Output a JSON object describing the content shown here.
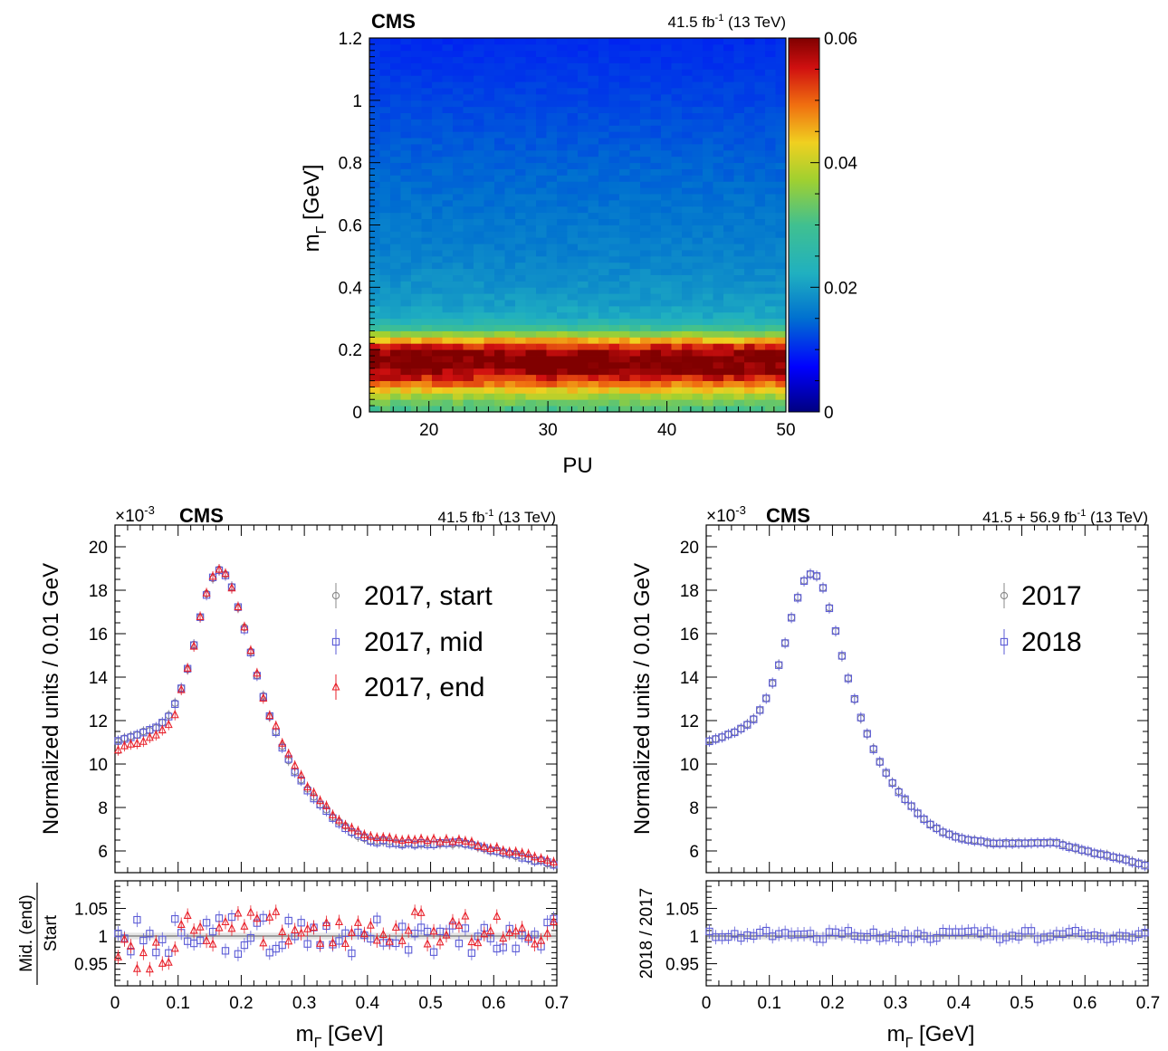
{
  "top_panel": {
    "experiment": "CMS",
    "lumi": "41.5 fb",
    "lumi_exp": "-1",
    "energy": "(13 TeV)",
    "xlabel": "PU",
    "ylabel_main": "m",
    "ylabel_sub": "Γ",
    "ylabel_unit": " [GeV]",
    "colorbar_ticks": [
      "0",
      "0.02",
      "0.04",
      "0.06"
    ]
  },
  "bottom_left": {
    "experiment": "CMS",
    "exponent_label": "×10",
    "exponent_power": "-3",
    "lumi": "41.5 fb",
    "lumi_exp": "-1",
    "energy": "(13 TeV)",
    "ylabel": "Normalized units / 0.01 GeV",
    "ratio_label_num": "Mid. (end)",
    "ratio_label_den": "Start",
    "xlabel_main": "m",
    "xlabel_sub": "Γ",
    "xlabel_unit": " [GeV]",
    "legend": [
      "2017, start",
      "2017, mid",
      "2017, end"
    ]
  },
  "bottom_right": {
    "experiment": "CMS",
    "exponent_label": "×10",
    "exponent_power": "-3",
    "lumi": "41.5 + 56.9 fb",
    "lumi_exp": "-1",
    "energy": "(13 TeV)",
    "ylabel": "Normalized units / 0.01 GeV",
    "ratio_label": "2018 / 2017",
    "xlabel_main": "m",
    "xlabel_sub": "Γ",
    "xlabel_unit": " [GeV]",
    "legend": [
      "2017",
      "2018"
    ]
  },
  "colors": {
    "start": "#888888",
    "mid": "#5b5bd6",
    "end": "#e8202a",
    "y2017": "#888888",
    "y2018": "#5b5bd6"
  },
  "chart_data": [
    {
      "type": "heatmap",
      "x_range": [
        15,
        50
      ],
      "y_range": [
        0,
        1.2
      ],
      "x_bins": 40,
      "y_bins": 60,
      "z_range": [
        0,
        0.06
      ],
      "x_ticks": [
        20,
        30,
        40,
        50
      ],
      "y_ticks": [
        0,
        0.2,
        0.4,
        0.6,
        0.8,
        1,
        1.2
      ],
      "y_profile": {
        "y": [
          0.0,
          0.02,
          0.04,
          0.06,
          0.08,
          0.1,
          0.12,
          0.14,
          0.16,
          0.18,
          0.2,
          0.22,
          0.24,
          0.26,
          0.28,
          0.3,
          0.35,
          0.4,
          0.5,
          0.6,
          0.7,
          0.8,
          0.9,
          1.0,
          1.1,
          1.2
        ],
        "z": [
          0.03,
          0.032,
          0.035,
          0.04,
          0.046,
          0.052,
          0.057,
          0.06,
          0.062,
          0.061,
          0.058,
          0.05,
          0.04,
          0.032,
          0.026,
          0.022,
          0.02,
          0.019,
          0.017,
          0.016,
          0.015,
          0.014,
          0.013,
          0.012,
          0.011,
          0.01
        ]
      }
    },
    {
      "type": "scatter",
      "x_range": [
        0,
        0.7
      ],
      "y_range": [
        5,
        21
      ],
      "y_ticks": [
        6,
        8,
        10,
        12,
        14,
        16,
        18,
        20
      ],
      "x_ticks": [
        0,
        0.1,
        0.2,
        0.3,
        0.4,
        0.5,
        0.6,
        0.7
      ],
      "ratio_range": [
        0.91,
        1.1
      ],
      "ratio_ticks": [
        0.95,
        1,
        1.05
      ],
      "curve_x": [
        0,
        0.02,
        0.04,
        0.06,
        0.08,
        0.1,
        0.12,
        0.14,
        0.16,
        0.18,
        0.2,
        0.22,
        0.24,
        0.26,
        0.28,
        0.3,
        0.32,
        0.34,
        0.36,
        0.38,
        0.4,
        0.45,
        0.5,
        0.55,
        0.6,
        0.65,
        0.7
      ],
      "curve_y": [
        11.0,
        11.2,
        11.4,
        11.6,
        12.0,
        13.0,
        14.8,
        17.4,
        19.0,
        18.6,
        16.8,
        14.6,
        12.6,
        11.1,
        9.9,
        9.0,
        8.3,
        7.7,
        7.2,
        6.8,
        6.5,
        6.35,
        6.35,
        6.35,
        6.0,
        5.7,
        5.35
      ],
      "series": [
        {
          "name": "2017, start",
          "marker": "circle"
        },
        {
          "name": "2017, mid",
          "marker": "square"
        },
        {
          "name": "2017, end",
          "marker": "triangle"
        }
      ]
    },
    {
      "type": "scatter",
      "x_range": [
        0,
        0.7
      ],
      "y_range": [
        5,
        21
      ],
      "y_ticks": [
        6,
        8,
        10,
        12,
        14,
        16,
        18,
        20
      ],
      "x_ticks": [
        0,
        0.1,
        0.2,
        0.3,
        0.4,
        0.5,
        0.6,
        0.7
      ],
      "ratio_range": [
        0.91,
        1.1
      ],
      "ratio_ticks": [
        0.95,
        1,
        1.05
      ],
      "curve_x": [
        0,
        0.02,
        0.04,
        0.06,
        0.08,
        0.1,
        0.12,
        0.14,
        0.16,
        0.18,
        0.2,
        0.22,
        0.24,
        0.26,
        0.28,
        0.3,
        0.32,
        0.34,
        0.36,
        0.38,
        0.4,
        0.45,
        0.5,
        0.55,
        0.6,
        0.65,
        0.7
      ],
      "curve_y": [
        11.0,
        11.2,
        11.4,
        11.7,
        12.2,
        13.3,
        15.0,
        17.3,
        18.8,
        18.6,
        16.7,
        14.4,
        12.5,
        11.0,
        9.8,
        8.9,
        8.2,
        7.6,
        7.1,
        6.8,
        6.6,
        6.35,
        6.35,
        6.4,
        6.0,
        5.7,
        5.3
      ],
      "series": [
        {
          "name": "2017",
          "marker": "circle"
        },
        {
          "name": "2018",
          "marker": "square"
        }
      ]
    }
  ]
}
